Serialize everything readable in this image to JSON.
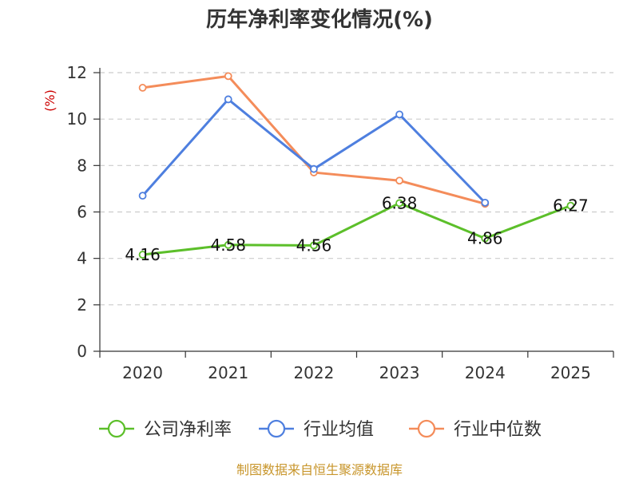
{
  "colors": {
    "company": "#5cbf2a",
    "industry_avg": "#4e7fdf",
    "industry_median": "#f48c5a",
    "grid": "#cccccc",
    "axis": "#333333",
    "unit": "#cc0000",
    "source": "#c8962c"
  },
  "chart_data": {
    "type": "line",
    "title": "历年净利率变化情况(%)",
    "unit_label": "(%)",
    "categories": [
      "2020",
      "2021",
      "2022",
      "2023",
      "2024",
      "2025"
    ],
    "ylim": [
      0,
      12
    ],
    "yticks": [
      0,
      2,
      4,
      6,
      8,
      10,
      12
    ],
    "grid": true,
    "legend_position": "bottom",
    "series": [
      {
        "name": "公司净利率",
        "key": "company",
        "values": [
          4.16,
          4.58,
          4.56,
          6.38,
          4.86,
          6.27
        ],
        "show_labels": true
      },
      {
        "name": "行业均值",
        "key": "industry_avg",
        "values": [
          6.7,
          10.85,
          7.85,
          10.2,
          6.4,
          null
        ],
        "show_labels": false
      },
      {
        "name": "行业中位数",
        "key": "industry_median",
        "values": [
          11.35,
          11.85,
          7.7,
          7.35,
          6.35,
          null
        ],
        "show_labels": false
      }
    ],
    "data_labels": [
      "4.16",
      "4.58",
      "4.56",
      "6.38",
      "4.86",
      "6.27"
    ]
  },
  "source_text": "制图数据来自恒生聚源数据库"
}
